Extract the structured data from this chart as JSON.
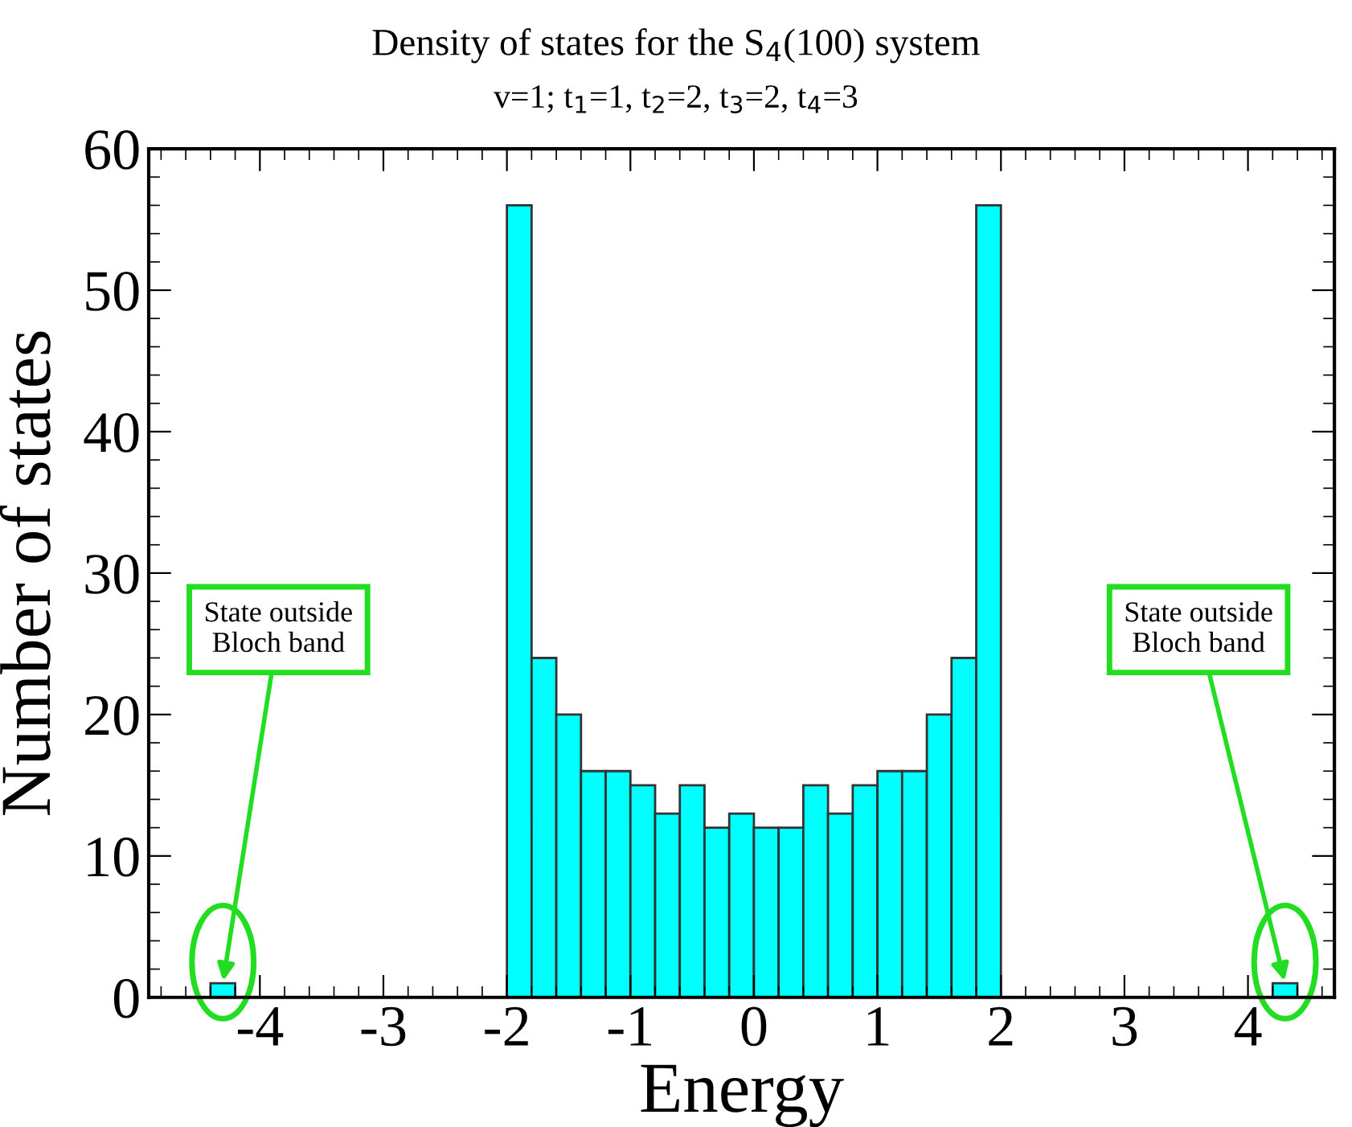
{
  "chart_data": {
    "type": "histogram",
    "title": "Density of states for the S$_{4}$(100) system",
    "subtitle": "v=1; t$_{1}$=1, t$_{2}$=2, t$_{3}$=2, t$_{4}$=3",
    "xlabel": "Energy",
    "ylabel": "Number of states",
    "bins": [
      -4.4,
      -4.2,
      -4.0,
      -3.8,
      -3.6,
      -3.4,
      -3.2,
      -3.0,
      -2.8,
      -2.6,
      -2.4,
      -2.2,
      -2.0,
      -1.8,
      -1.6,
      -1.4,
      -1.2,
      -1.0,
      -0.8,
      -0.6,
      -0.4,
      -0.2,
      0.0,
      0.2,
      0.4,
      0.6,
      0.8,
      1.0,
      1.2,
      1.4,
      1.6,
      1.8,
      2.0,
      2.2,
      2.4,
      2.6,
      2.8,
      3.0,
      3.2,
      3.4,
      3.6,
      3.8,
      4.0,
      4.2,
      4.4
    ],
    "values": [
      1,
      0,
      0,
      0,
      0,
      0,
      0,
      0,
      0,
      0,
      0,
      0,
      56,
      24,
      20,
      16,
      16,
      15,
      13,
      15,
      12,
      13,
      12,
      12,
      15,
      13,
      15,
      16,
      16,
      20,
      24,
      56,
      0,
      0,
      0,
      0,
      0,
      0,
      0,
      0,
      0,
      0,
      0,
      1
    ],
    "color": "#00ffff",
    "xlim": [
      -4.9,
      4.7
    ],
    "xticks": [
      -4,
      -3,
      -2,
      -1,
      0,
      1,
      2,
      3,
      4
    ],
    "ylim": [
      0,
      60
    ],
    "yticks": [
      0,
      10,
      20,
      30,
      40,
      50,
      60
    ],
    "grid": false,
    "legend": false,
    "annotations": [
      {
        "text": "State outside\nBloch band",
        "x": -4.3,
        "y": 1
      },
      {
        "text": "State outside\nBloch band",
        "x": 4.3,
        "y": 1
      }
    ]
  }
}
